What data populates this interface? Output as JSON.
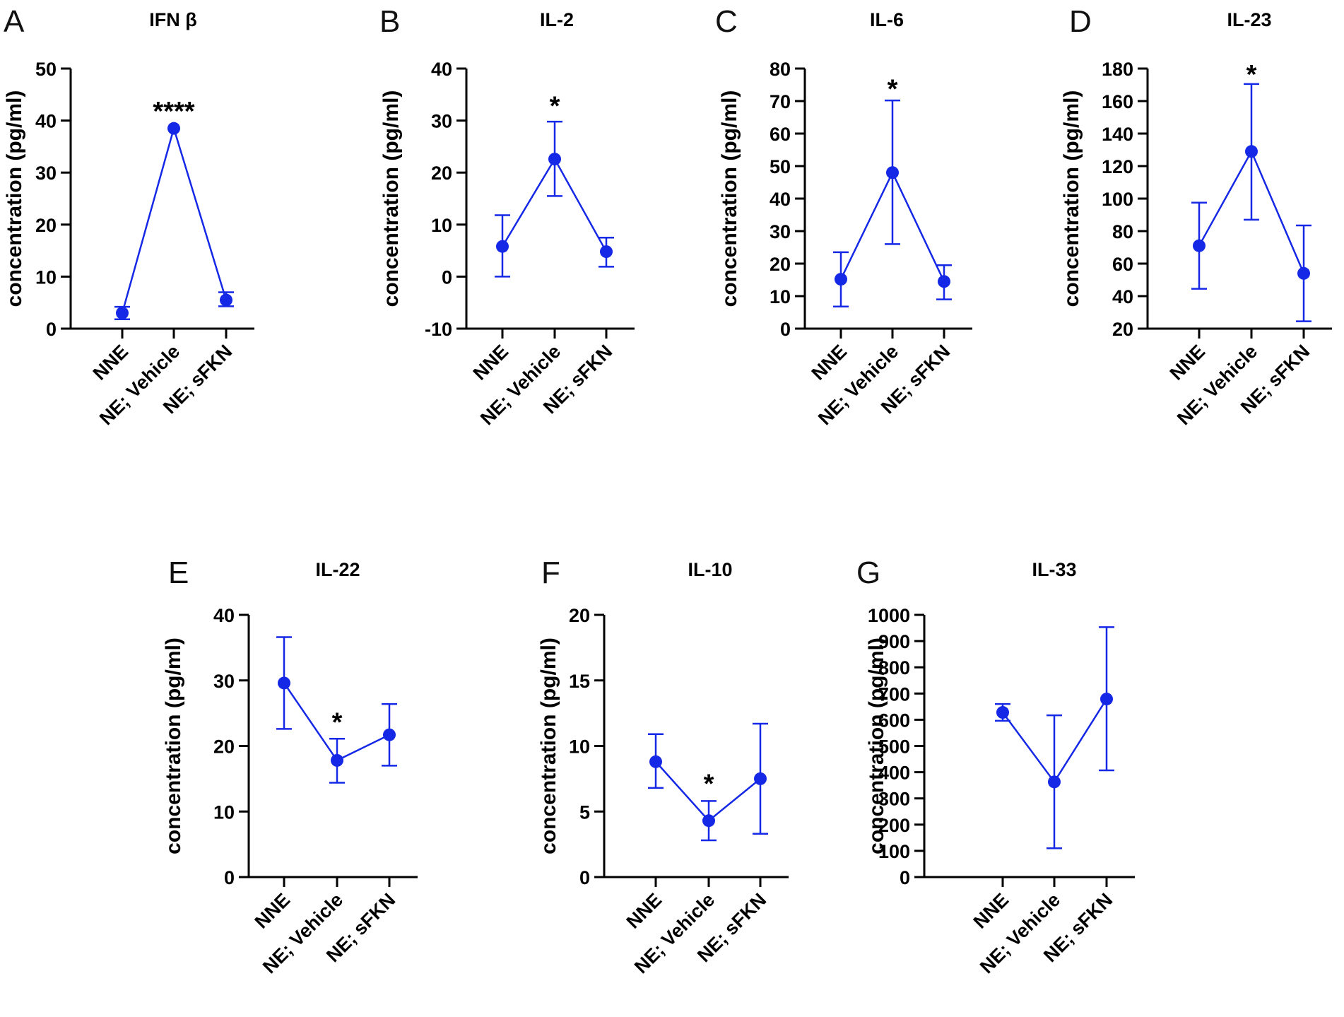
{
  "figure": {
    "series_color": "#1428e6",
    "axis_color": "#000000"
  },
  "chart_data": [
    {
      "panel": "A",
      "title": "IFN β",
      "type": "line",
      "ylabel": "concentration (pg/ml)",
      "categories": [
        "NNE",
        "NE; Vehicle",
        "NE; sFKN"
      ],
      "values": [
        3,
        38.5,
        5.5
      ],
      "err_low": [
        1.8,
        38.5,
        4.3
      ],
      "err_high": [
        4.2,
        38.5,
        7.0
      ],
      "ylim": [
        0,
        50
      ],
      "yticks": [
        "0",
        "10",
        "20",
        "30",
        "40",
        "50"
      ],
      "annotation": {
        "text": "****",
        "category": "NE; Vehicle",
        "y": 42
      }
    },
    {
      "panel": "B",
      "title": "IL-2",
      "type": "line",
      "ylabel": "concentration (pg/ml)",
      "categories": [
        "NNE",
        "NE; Vehicle",
        "NE; sFKN"
      ],
      "values": [
        5.8,
        22.6,
        4.8
      ],
      "err_low": [
        0,
        15.5,
        1.9
      ],
      "err_high": [
        11.8,
        29.8,
        7.5
      ],
      "ylim": [
        -10,
        40
      ],
      "yticks": [
        "-10",
        "0",
        "10",
        "20",
        "30",
        "40"
      ],
      "annotation": {
        "text": "*",
        "category": "NE; Vehicle",
        "y": 33
      }
    },
    {
      "panel": "C",
      "title": "IL-6",
      "type": "line",
      "ylabel": "concentration (pg/ml)",
      "categories": [
        "NNE",
        "NE; Vehicle",
        "NE; sFKN"
      ],
      "values": [
        15.2,
        48,
        14.5
      ],
      "err_low": [
        6.8,
        26,
        9.0
      ],
      "err_high": [
        23.5,
        70.2,
        19.5
      ],
      "ylim": [
        0,
        80
      ],
      "yticks": [
        "0",
        "10",
        "20",
        "30",
        "40",
        "50",
        "60",
        "70",
        "80"
      ],
      "annotation": {
        "text": "*",
        "category": "NE; Vehicle",
        "y": 74
      }
    },
    {
      "panel": "D",
      "title": "IL-23",
      "type": "line",
      "ylabel": "concentration (pg/ml)",
      "categories": [
        "NNE",
        "NE; Vehicle",
        "NE; sFKN"
      ],
      "values": [
        71,
        129,
        54
      ],
      "err_low": [
        44.5,
        87,
        24.5
      ],
      "err_high": [
        97.5,
        170.5,
        83.5
      ],
      "ylim": [
        20,
        180
      ],
      "yticks": [
        "20",
        "40",
        "60",
        "80",
        "100",
        "120",
        "140",
        "160",
        "180"
      ],
      "annotation": {
        "text": "*",
        "category": "NE; Vehicle",
        "y": 177
      }
    },
    {
      "panel": "E",
      "title": "IL-22",
      "type": "line",
      "ylabel": "concentration (pg/ml)",
      "categories": [
        "NNE",
        "NE; Vehicle",
        "NE; sFKN"
      ],
      "values": [
        29.6,
        17.8,
        21.7
      ],
      "err_low": [
        22.6,
        14.4,
        17.0
      ],
      "err_high": [
        36.6,
        21.1,
        26.4
      ],
      "ylim": [
        0,
        40
      ],
      "yticks": [
        "0",
        "10",
        "20",
        "30",
        "40"
      ],
      "annotation": {
        "text": "*",
        "category": "NE; Vehicle",
        "y": 23.8
      }
    },
    {
      "panel": "F",
      "title": "IL-10",
      "type": "line",
      "ylabel": "concentration (pg/ml)",
      "categories": [
        "NNE",
        "NE; Vehicle",
        "NE; sFKN"
      ],
      "values": [
        8.8,
        4.3,
        7.5
      ],
      "err_low": [
        6.8,
        2.8,
        3.3
      ],
      "err_high": [
        10.9,
        5.8,
        11.7
      ],
      "ylim": [
        0,
        20
      ],
      "yticks": [
        "0",
        "5",
        "10",
        "15",
        "20"
      ],
      "annotation": {
        "text": "*",
        "category": "NE; Vehicle",
        "y": 7.2
      }
    },
    {
      "panel": "G",
      "title": "IL-33",
      "type": "line",
      "ylabel": "concentration (pg/ml)",
      "categories": [
        "NNE",
        "NE; Vehicle",
        "NE; sFKN"
      ],
      "values": [
        628,
        363,
        679
      ],
      "err_low": [
        596,
        110,
        407
      ],
      "err_high": [
        660,
        617,
        953
      ],
      "ylim": [
        0,
        1000
      ],
      "yticks": [
        "0",
        "100",
        "200",
        "300",
        "400",
        "500",
        "600",
        "700",
        "800",
        "900",
        "1000"
      ],
      "annotation": null
    }
  ]
}
